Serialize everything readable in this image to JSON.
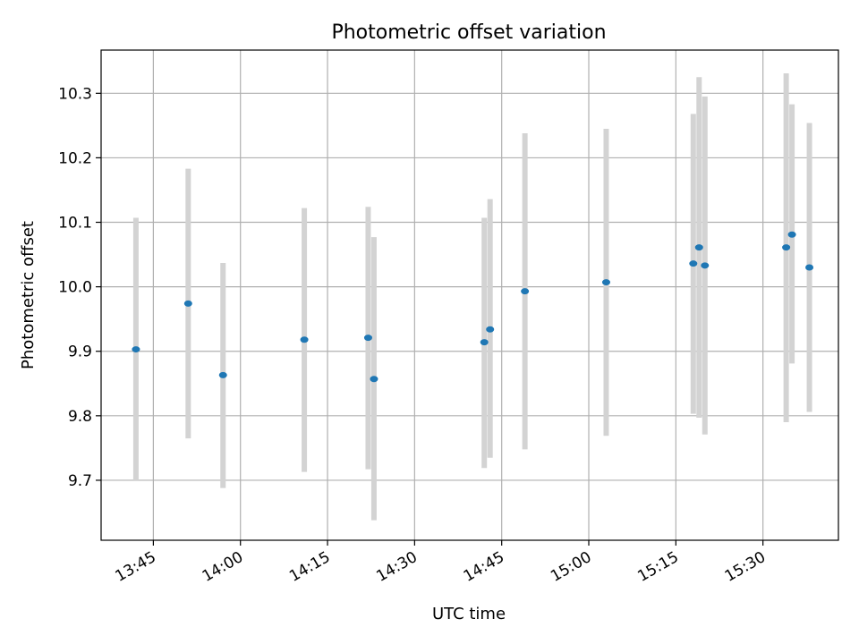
{
  "chart_data": {
    "type": "scatter",
    "title": "Photometric offset variation",
    "xlabel": "UTC time",
    "ylabel": "Photometric offset",
    "grid": true,
    "x_ticks": [
      "13:45",
      "14:00",
      "14:15",
      "14:30",
      "14:45",
      "15:00",
      "15:15",
      "15:30"
    ],
    "y_ticks": [
      "9.7",
      "9.8",
      "9.9",
      "10.0",
      "10.1",
      "10.2",
      "10.3"
    ],
    "xlim": [
      "13:36",
      "15:43"
    ],
    "ylim": [
      9.607,
      10.367
    ],
    "marker_color": "#1f77b4",
    "errorbar_color": "#d3d3d3",
    "points": [
      {
        "x": "13:42",
        "y": 9.903,
        "ylow": 9.7,
        "yhigh": 10.107
      },
      {
        "x": "13:51",
        "y": 9.974,
        "ylow": 9.765,
        "yhigh": 10.183
      },
      {
        "x": "13:57",
        "y": 9.863,
        "ylow": 9.688,
        "yhigh": 10.037
      },
      {
        "x": "14:11",
        "y": 9.918,
        "ylow": 9.713,
        "yhigh": 10.122
      },
      {
        "x": "14:22",
        "y": 9.921,
        "ylow": 9.717,
        "yhigh": 10.124
      },
      {
        "x": "14:23",
        "y": 9.857,
        "ylow": 9.638,
        "yhigh": 10.077
      },
      {
        "x": "14:42",
        "y": 9.914,
        "ylow": 9.719,
        "yhigh": 10.107
      },
      {
        "x": "14:43",
        "y": 9.934,
        "ylow": 9.735,
        "yhigh": 10.136
      },
      {
        "x": "14:49",
        "y": 9.993,
        "ylow": 9.748,
        "yhigh": 10.238
      },
      {
        "x": "15:03",
        "y": 10.007,
        "ylow": 9.769,
        "yhigh": 10.245
      },
      {
        "x": "15:18",
        "y": 10.036,
        "ylow": 9.803,
        "yhigh": 10.268
      },
      {
        "x": "15:19",
        "y": 10.061,
        "ylow": 9.797,
        "yhigh": 10.325
      },
      {
        "x": "15:20",
        "y": 10.033,
        "ylow": 9.771,
        "yhigh": 10.295
      },
      {
        "x": "15:34",
        "y": 10.061,
        "ylow": 9.79,
        "yhigh": 10.331
      },
      {
        "x": "15:35",
        "y": 10.081,
        "ylow": 9.881,
        "yhigh": 10.283
      },
      {
        "x": "15:38",
        "y": 10.03,
        "ylow": 9.806,
        "yhigh": 10.254
      }
    ]
  }
}
